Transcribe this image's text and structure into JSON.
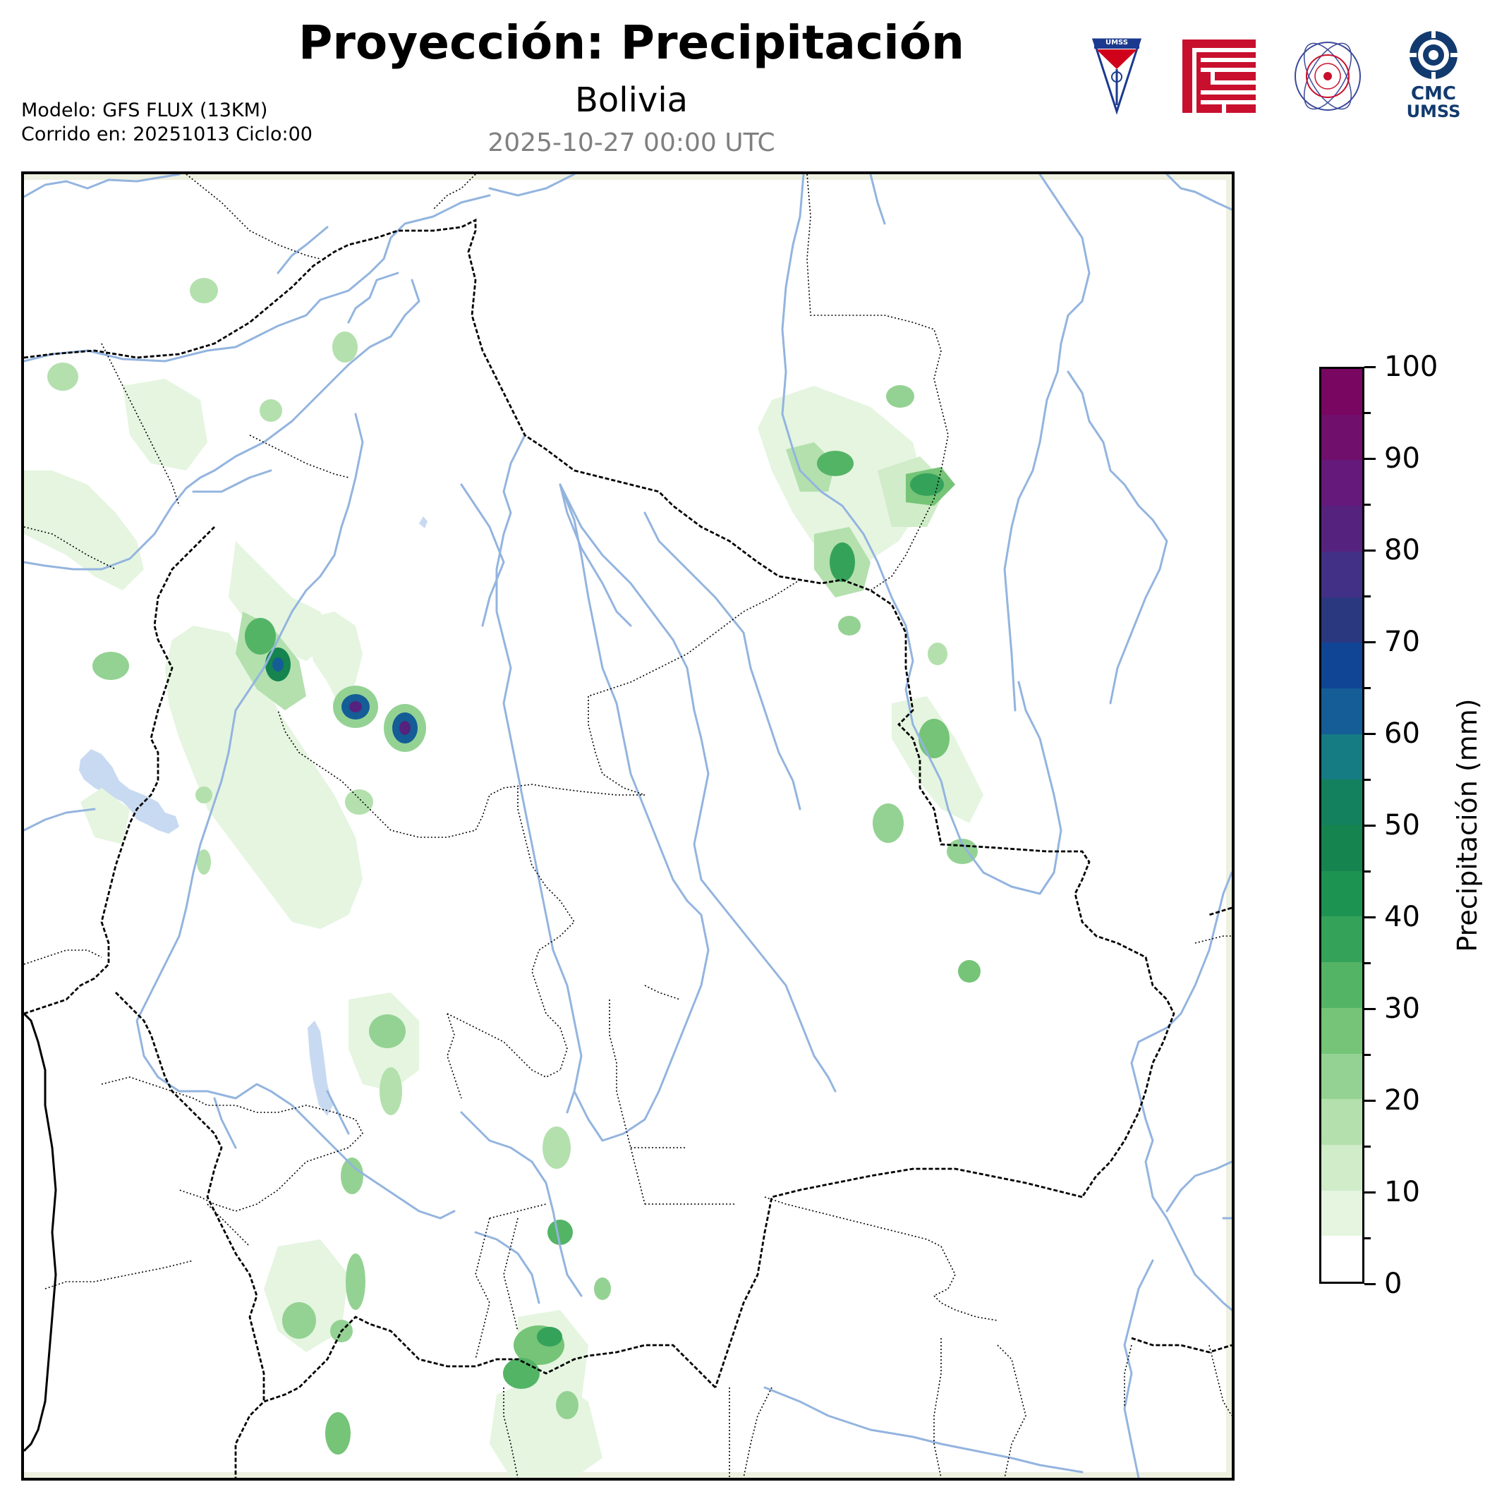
{
  "header": {
    "title": "Proyección: Precipitación",
    "subtitle": "Bolivia",
    "date": "2025-10-27 00:00 UTC",
    "model_line": "Modelo: GFS FLUX (13KM)",
    "run_line": "Corrido en: 20251013 Ciclo:00"
  },
  "logos": {
    "umss": "UMSS",
    "cmc_line1": "CMC",
    "cmc_line2": "UMSS"
  },
  "colorbar": {
    "label": "Precipitación (mm)",
    "ticks": [
      "0",
      "10",
      "20",
      "30",
      "40",
      "50",
      "60",
      "70",
      "80",
      "90",
      "100"
    ],
    "min": 0,
    "max": 100,
    "step": 5,
    "colors": [
      "#ffffff",
      "#e5f5e0",
      "#d0ecc9",
      "#b3e0ad",
      "#94d293",
      "#75c477",
      "#54b466",
      "#35a25a",
      "#1d9352",
      "#15844e",
      "#13815d",
      "#157c84",
      "#145d97",
      "#0f4594",
      "#2a3880",
      "#423086",
      "#55237e",
      "#65197a",
      "#700f6c",
      "#790661"
    ]
  },
  "map": {
    "region": "Bolivia",
    "colors": {
      "rivers": "#93b4df",
      "lakes": "#c8daf1",
      "borders": "#000000"
    }
  }
}
